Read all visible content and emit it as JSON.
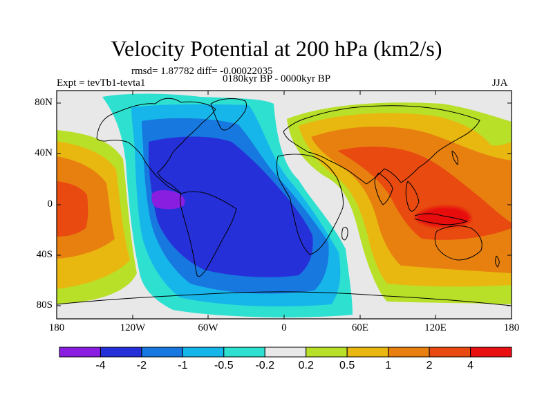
{
  "title": "Velocity Potential at 200 hPa (km2/s)",
  "stats": "rmsd= 1.87782 diff= -0.00022035",
  "experiment": "Expt = tevTb1-tevta1",
  "period": "0180kyr BP - 0000kyr BP",
  "season": "JJA",
  "lat_labels": [
    "80N",
    "40N",
    "0",
    "40S",
    "80S"
  ],
  "lon_labels": [
    "180",
    "120W",
    "60W",
    "0",
    "60E",
    "120E",
    "180"
  ],
  "colorbar": {
    "labels": [
      "-4",
      "-2",
      "-1",
      "-0.5",
      "-0.2",
      "0.2",
      "0.5",
      "1",
      "2",
      "4"
    ],
    "colors": [
      "#8a1ee0",
      "#2630d8",
      "#1778e0",
      "#17b6ea",
      "#2ee0d0",
      "#e8e8e8",
      "#b8e028",
      "#e8b810",
      "#e88010",
      "#e84a10",
      "#e81010"
    ]
  }
}
